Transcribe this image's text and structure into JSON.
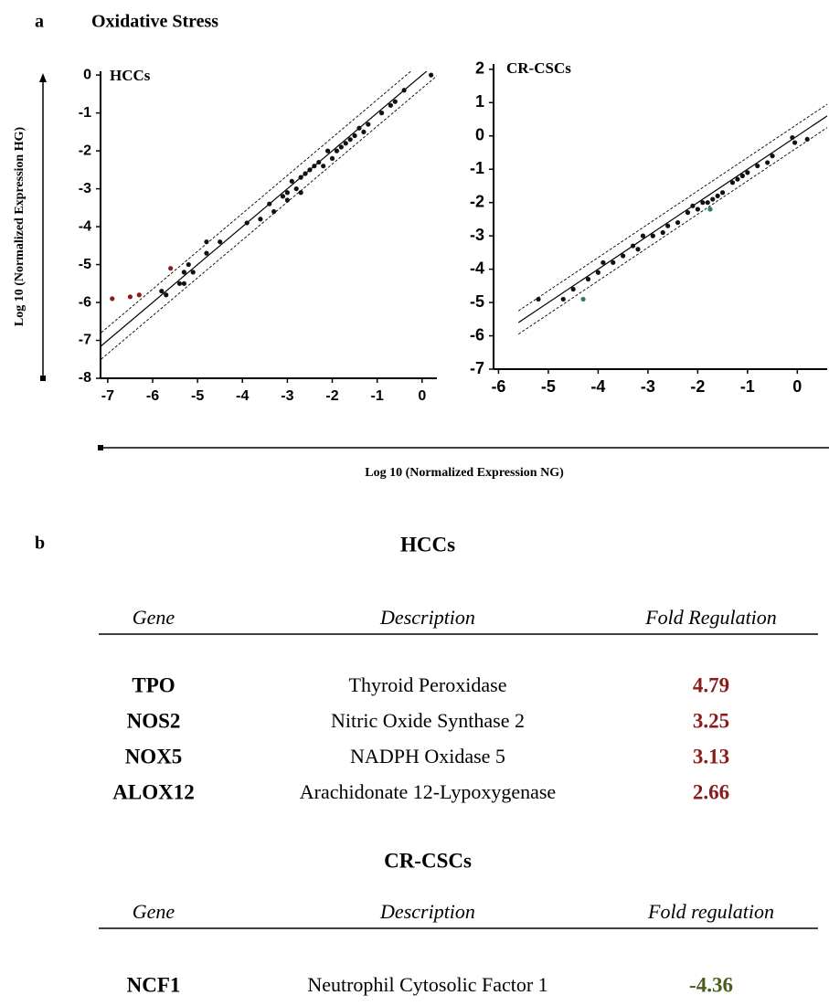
{
  "panel_labels": [
    "a",
    "b"
  ],
  "figure_title": "Oxidative Stress",
  "y_axis_label": "Log 10 (Normalized Expression HG)",
  "x_axis_label": "Log 10 (Normalized Expression NG)",
  "chart_data": [
    {
      "type": "scatter",
      "title": "HCCs",
      "xlim": [
        -7.16,
        0.33
      ],
      "ylim": [
        -8,
        0.1
      ],
      "xticks": [
        -7,
        -6,
        -5,
        -4,
        -3,
        -2,
        -1,
        0
      ],
      "yticks": [
        0,
        -1,
        -2,
        -3,
        -4,
        -5,
        -6,
        -7,
        -8
      ],
      "series": [
        {
          "color": "#111111",
          "x": [
            -5.8,
            -5.7,
            -5.4,
            -5.3,
            -5.2,
            -5.1,
            -5.3,
            -4.8,
            -4.8,
            -4.5,
            -3.9,
            -3.6,
            -3.4,
            -3.3,
            -3.1,
            -3.0,
            -2.9,
            -2.8,
            -2.7,
            -2.6,
            -2.5,
            -2.4,
            -2.3,
            -2.1,
            -2.0,
            -1.9,
            -1.8,
            -1.7,
            -1.5,
            -1.4,
            -1.3,
            -1.2,
            -0.9,
            -0.7,
            -0.6,
            -0.4,
            0.2,
            -2.7,
            -3.0,
            -2.2,
            -1.6
          ],
          "y": [
            -5.7,
            -5.8,
            -5.5,
            -5.2,
            -5.0,
            -5.2,
            -5.5,
            -4.7,
            -4.4,
            -4.4,
            -3.9,
            -3.8,
            -3.4,
            -3.6,
            -3.2,
            -3.1,
            -2.8,
            -3.0,
            -2.7,
            -2.6,
            -2.5,
            -2.4,
            -2.3,
            -2.0,
            -2.2,
            -2.0,
            -1.9,
            -1.8,
            -1.6,
            -1.4,
            -1.5,
            -1.3,
            -1.0,
            -0.8,
            -0.7,
            -0.4,
            0.0,
            -3.1,
            -3.3,
            -2.4,
            -1.7
          ]
        },
        {
          "color": "#8b1a1a",
          "x": [
            -6.9,
            -6.5,
            -6.3,
            -5.6
          ],
          "y": [
            -5.9,
            -5.85,
            -5.8,
            -5.1
          ]
        }
      ]
    },
    {
      "type": "scatter",
      "title": "CR-CSCs",
      "xlim": [
        -6.1,
        0.6
      ],
      "ylim": [
        -7,
        2.16
      ],
      "xticks": [
        -6,
        -5,
        -4,
        -3,
        -2,
        -1,
        0
      ],
      "yticks": [
        2,
        1,
        0,
        -1,
        -2,
        -3,
        -4,
        -5,
        -6,
        -7
      ],
      "series": [
        {
          "color": "#111111",
          "x": [
            -5.2,
            -4.7,
            -4.5,
            -4.2,
            -4.0,
            -3.9,
            -3.7,
            -3.5,
            -3.3,
            -3.2,
            -3.1,
            -2.9,
            -2.7,
            -2.6,
            -2.4,
            -2.2,
            -2.1,
            -2.0,
            -1.9,
            -1.8,
            -1.7,
            -1.6,
            -1.5,
            -1.3,
            -1.2,
            -1.1,
            -1.0,
            -0.8,
            -0.6,
            -0.5,
            -0.05,
            0.2,
            -0.1
          ],
          "y": [
            -4.9,
            -4.9,
            -4.6,
            -4.3,
            -4.1,
            -3.8,
            -3.8,
            -3.6,
            -3.3,
            -3.4,
            -3.0,
            -3.0,
            -2.9,
            -2.7,
            -2.6,
            -2.3,
            -2.1,
            -2.2,
            -2.0,
            -2.0,
            -1.9,
            -1.8,
            -1.7,
            -1.4,
            -1.3,
            -1.2,
            -1.1,
            -0.9,
            -0.8,
            -0.6,
            -0.2,
            -0.1,
            -0.05
          ]
        },
        {
          "color": "#2e7d5b",
          "x": [
            -4.3,
            -1.75
          ],
          "y": [
            -4.9,
            -2.2
          ]
        }
      ]
    }
  ],
  "tables": [
    {
      "title": "HCCs",
      "header": [
        "Gene",
        "Description",
        "Fold Regulation"
      ],
      "value_color": "#8b1a1a",
      "rows": [
        [
          "TPO",
          "Thyroid Peroxidase",
          4.79
        ],
        [
          "NOS2",
          "Nitric Oxide Synthase 2",
          3.25
        ],
        [
          "NOX5",
          "NADPH Oxidase 5",
          3.13
        ],
        [
          "ALOX12",
          "Arachidonate 12-Lypoxygenase",
          2.66
        ]
      ]
    },
    {
      "title": "CR-CSCs",
      "header": [
        "Gene",
        "Description",
        "Fold regulation"
      ],
      "value_color": "#4a5e1e",
      "rows": [
        [
          "NCF1",
          "Neutrophil Cytosolic Factor 1",
          -4.36
        ]
      ]
    }
  ]
}
